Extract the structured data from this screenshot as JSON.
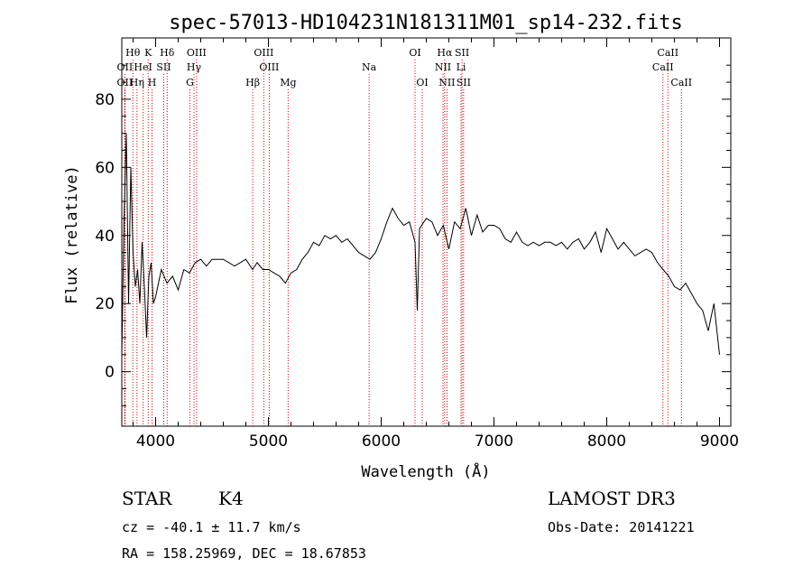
{
  "chart_data": {
    "type": "line",
    "title": "spec-57013-HD104231N181311M01_sp14-232.fits",
    "xlabel": "Wavelength (Å)",
    "ylabel": "Flux (relative)",
    "xlim": [
      3700,
      9100
    ],
    "ylim": [
      -16,
      98
    ],
    "xticks": [
      4000,
      5000,
      6000,
      7000,
      8000,
      9000
    ],
    "yticks": [
      0,
      20,
      40,
      60,
      80
    ],
    "series": [
      {
        "name": "flux",
        "x": [
          3700,
          3720,
          3740,
          3760,
          3780,
          3800,
          3820,
          3840,
          3860,
          3880,
          3900,
          3920,
          3940,
          3960,
          3980,
          4000,
          4050,
          4100,
          4150,
          4200,
          4250,
          4300,
          4350,
          4400,
          4450,
          4500,
          4600,
          4700,
          4800,
          4860,
          4900,
          4950,
          5000,
          5050,
          5100,
          5150,
          5200,
          5250,
          5300,
          5350,
          5400,
          5450,
          5500,
          5550,
          5600,
          5650,
          5700,
          5750,
          5800,
          5850,
          5900,
          5950,
          6000,
          6050,
          6100,
          6150,
          6200,
          6250,
          6300,
          6320,
          6340,
          6400,
          6450,
          6500,
          6550,
          6600,
          6650,
          6700,
          6750,
          6800,
          6850,
          6900,
          6950,
          7000,
          7050,
          7100,
          7150,
          7200,
          7250,
          7300,
          7350,
          7400,
          7450,
          7500,
          7550,
          7600,
          7650,
          7700,
          7750,
          7800,
          7850,
          7900,
          7950,
          8000,
          8050,
          8100,
          8150,
          8200,
          8250,
          8300,
          8350,
          8400,
          8450,
          8500,
          8550,
          8600,
          8650,
          8700,
          8750,
          8800,
          8850,
          8900,
          8950,
          9000
        ],
        "values": [
          5,
          45,
          70,
          20,
          60,
          35,
          25,
          30,
          20,
          38,
          25,
          10,
          28,
          32,
          20,
          22,
          30,
          26,
          28,
          24,
          30,
          29,
          32,
          33,
          31,
          33,
          33,
          31,
          33,
          30,
          32,
          30,
          30,
          29,
          28,
          26,
          29,
          30,
          33,
          35,
          38,
          37,
          40,
          39,
          40,
          38,
          39,
          37,
          35,
          34,
          33,
          35,
          39,
          44,
          48,
          45,
          43,
          44,
          38,
          18,
          42,
          45,
          44,
          40,
          43,
          36,
          44,
          42,
          48,
          40,
          46,
          41,
          43,
          43,
          42,
          39,
          38,
          41,
          38,
          37,
          38,
          37,
          38,
          38,
          37,
          38,
          36,
          38,
          39,
          36,
          38,
          41,
          35,
          42,
          39,
          36,
          38,
          36,
          34,
          35,
          36,
          35,
          32,
          30,
          28,
          25,
          24,
          26,
          23,
          20,
          18,
          12,
          20,
          5
        ]
      }
    ],
    "spectral_lines": [
      {
        "label": "Hθ",
        "x": 3798,
        "row": 1
      },
      {
        "label": "K",
        "x": 3934,
        "row": 1
      },
      {
        "label": "Hδ",
        "x": 4102,
        "row": 1
      },
      {
        "label": "OIII",
        "x": 4363,
        "row": 1
      },
      {
        "label": "OIII",
        "x": 4959,
        "row": 1
      },
      {
        "label": "OI",
        "x": 6300,
        "row": 1
      },
      {
        "label": "Hα",
        "x": 6563,
        "row": 1
      },
      {
        "label": "SII",
        "x": 6717,
        "row": 1
      },
      {
        "label": "CaII",
        "x": 8542,
        "row": 1
      },
      {
        "label": "OII",
        "x": 3727,
        "row": 2
      },
      {
        "label": "HeI",
        "x": 3889,
        "row": 2
      },
      {
        "label": "SII",
        "x": 4072,
        "row": 2
      },
      {
        "label": "Hγ",
        "x": 4340,
        "row": 2
      },
      {
        "label": "OIII",
        "x": 5007,
        "row": 2
      },
      {
        "label": "Na",
        "x": 5893,
        "row": 2
      },
      {
        "label": "NII",
        "x": 6548,
        "row": 2
      },
      {
        "label": "Li",
        "x": 6708,
        "row": 2
      },
      {
        "label": "CaII",
        "x": 8498,
        "row": 2
      },
      {
        "label": "OII",
        "x": 3727,
        "row": 3
      },
      {
        "label": "Hη",
        "x": 3835,
        "row": 3
      },
      {
        "label": "H",
        "x": 3968,
        "row": 3
      },
      {
        "label": "G",
        "x": 4304,
        "row": 3
      },
      {
        "label": "Hβ",
        "x": 4861,
        "row": 3
      },
      {
        "label": "Mg",
        "x": 5175,
        "row": 3
      },
      {
        "label": "OI",
        "x": 6364,
        "row": 3
      },
      {
        "label": "NII",
        "x": 6583,
        "row": 3
      },
      {
        "label": "SII",
        "x": 6731,
        "row": 3
      },
      {
        "label": "CaII",
        "x": 8662,
        "row": 3
      }
    ]
  },
  "info": {
    "object_class": "STAR",
    "subclass": "K4",
    "survey": "LAMOST DR3",
    "redshift": "cz = -40.1 ± 11.7 km/s",
    "obs_date": "Obs-Date: 20141221",
    "coords": "RA = 158.25969, DEC =  18.67853"
  }
}
